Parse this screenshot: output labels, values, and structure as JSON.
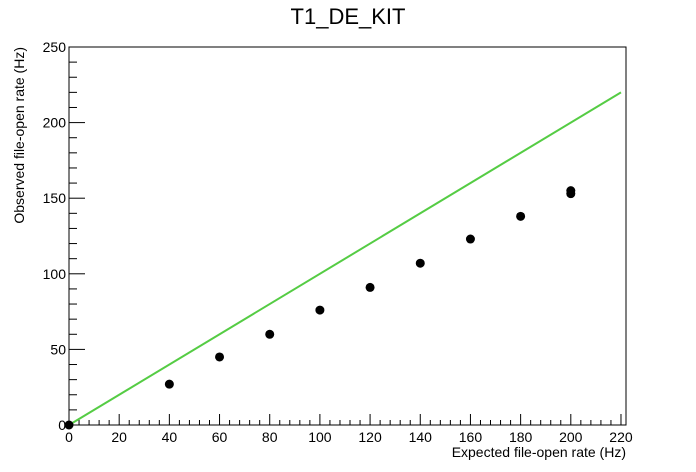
{
  "chart_data": {
    "type": "scatter",
    "title": "T1_DE_KIT",
    "xlabel": "Expected file-open rate (Hz)",
    "ylabel": "Observed file-open rate (Hz)",
    "xlim": [
      0,
      222
    ],
    "ylim": [
      0,
      250
    ],
    "x_ticks": [
      0,
      20,
      40,
      60,
      80,
      100,
      120,
      140,
      160,
      180,
      200,
      220
    ],
    "y_ticks": [
      0,
      50,
      100,
      150,
      200,
      250
    ],
    "x_tick_labels": [
      "0",
      "20",
      "40",
      "60",
      "80",
      "100",
      "120",
      "140",
      "160",
      "180",
      "200",
      "220"
    ],
    "y_tick_labels": [
      "0",
      "50",
      "100",
      "150",
      "200",
      "250"
    ],
    "grid": false,
    "series": [
      {
        "type": "scatter",
        "color": "#000000",
        "x": [
          0,
          40,
          60,
          80,
          100,
          120,
          140,
          160,
          180,
          200,
          200
        ],
        "y": [
          0,
          27,
          45,
          60,
          76,
          91,
          107,
          123,
          138,
          153,
          155
        ]
      },
      {
        "type": "line",
        "color": "#55cc44",
        "x": [
          0,
          220
        ],
        "y": [
          0,
          220
        ]
      }
    ]
  }
}
